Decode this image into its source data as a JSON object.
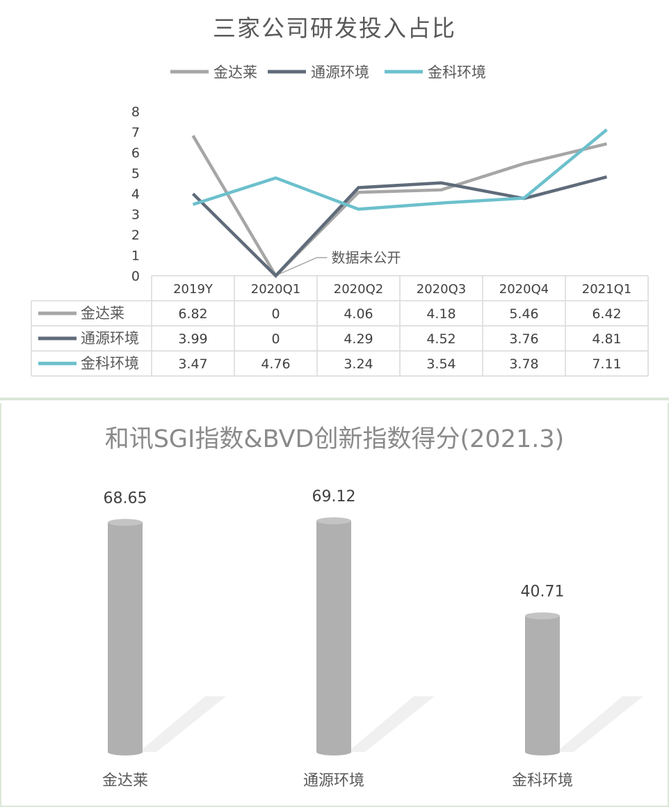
{
  "chart_data": [
    {
      "type": "line",
      "title": "三家公司研发投入占比",
      "categories": [
        "2019Y",
        "2020Q1",
        "2020Q2",
        "2020Q3",
        "2020Q4",
        "2021Q1"
      ],
      "ylim": [
        0,
        8
      ],
      "yticks": [
        "0",
        "1",
        "2",
        "3",
        "4",
        "5",
        "6",
        "7",
        "8"
      ],
      "legend_position": "top",
      "data_table": true,
      "annotation": "数据未公开",
      "series": [
        {
          "name": "金达莱",
          "values": [
            6.82,
            0,
            4.06,
            4.18,
            5.46,
            6.42
          ],
          "labels": [
            "6.82",
            "0",
            "4.06",
            "4.18",
            "5.46",
            "6.42"
          ],
          "color": "#a6a6a6"
        },
        {
          "name": "通源环境",
          "values": [
            3.99,
            0,
            4.29,
            4.52,
            3.76,
            4.81
          ],
          "labels": [
            "3.99",
            "0",
            "4.29",
            "4.52",
            "3.76",
            "4.81"
          ],
          "color": "#5f6b7a"
        },
        {
          "name": "金科环境",
          "values": [
            3.47,
            4.76,
            3.24,
            3.54,
            3.78,
            7.11
          ],
          "labels": [
            "3.47",
            "4.76",
            "3.24",
            "3.54",
            "3.78",
            "7.11"
          ],
          "color": "#6cc0cc"
        }
      ]
    },
    {
      "type": "bar",
      "title": "和讯SGI指数&BVD创新指数得分(2021.3)",
      "categories": [
        "金达莱",
        "通源环境",
        "金科环境"
      ],
      "values": [
        68.65,
        69.12,
        40.71
      ],
      "labels": [
        "68.65",
        "69.12",
        "40.71"
      ],
      "ylim": [
        0,
        70
      ],
      "bar_color": "#b0b0b0"
    }
  ]
}
